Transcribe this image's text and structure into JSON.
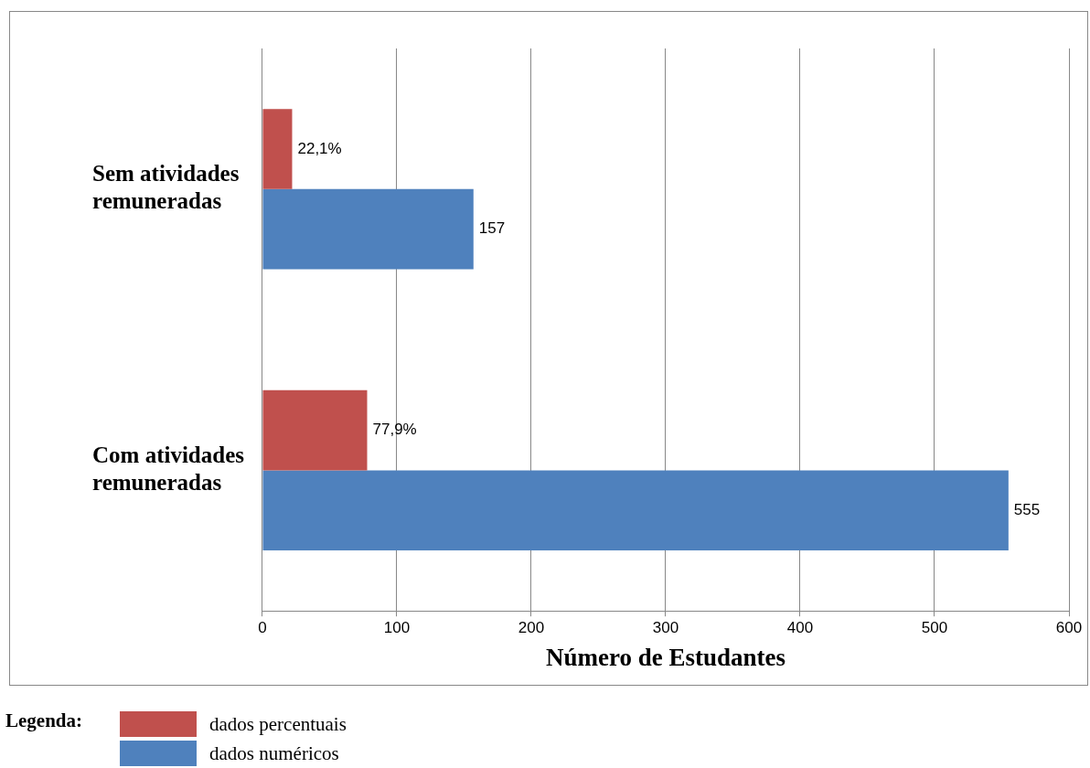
{
  "chart_data": {
    "type": "bar",
    "orientation": "horizontal",
    "categories": [
      "Sem atividades remuneradas",
      "Com atividades remuneradas"
    ],
    "series": [
      {
        "name": "dados percentuais",
        "color": "#c0504d",
        "values": [
          22.1,
          77.9
        ],
        "value_labels": [
          "22,1%",
          "77,9%"
        ]
      },
      {
        "name": "dados numéricos",
        "color": "#4f81bd",
        "values": [
          157,
          555
        ],
        "value_labels": [
          "157",
          "555"
        ]
      }
    ],
    "xlabel": "Número de Estudantes",
    "xlim": [
      0,
      600
    ],
    "xticks": [
      0,
      100,
      200,
      300,
      400,
      500,
      600
    ],
    "grid": "x",
    "legend": "bottom left",
    "legend_title": "Legenda:"
  }
}
